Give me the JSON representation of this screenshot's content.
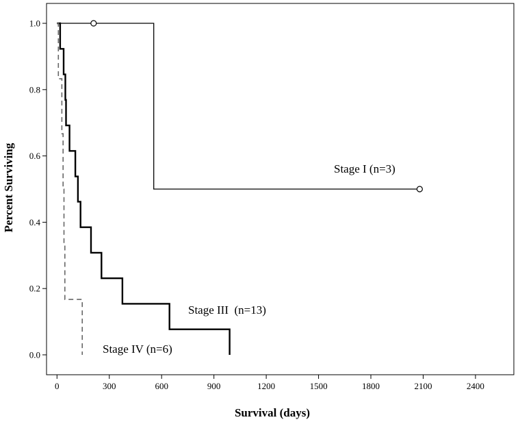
{
  "chart_data": {
    "type": "line",
    "subtype": "kaplan-meier step",
    "xlabel": "Survival (days)",
    "ylabel": "Percent Surviving",
    "xlim": [
      -60,
      2620
    ],
    "ylim": [
      -0.06,
      1.06
    ],
    "xticks": [
      0,
      300,
      600,
      900,
      1200,
      1500,
      1800,
      2100,
      2400
    ],
    "yticks": [
      0.0,
      0.2,
      0.4,
      0.6,
      0.8,
      1.0
    ],
    "ytick_labels": [
      "0.0",
      "0.2",
      "0.4",
      "0.6",
      "0.8",
      "1.0"
    ],
    "grid": false,
    "legend": "none",
    "series": [
      {
        "label": "Stage I (n=3)",
        "style": "solid-thin",
        "color": "#000000",
        "steps": [
          [
            0,
            1.0
          ],
          [
            555,
            1.0
          ],
          [
            555,
            0.5
          ],
          [
            2080,
            0.5
          ]
        ],
        "censored": [
          [
            210,
            1.0
          ],
          [
            2080,
            0.5
          ]
        ]
      },
      {
        "label": "Stage III  (n=13)",
        "style": "solid-thick",
        "color": "#000000",
        "steps": [
          [
            0,
            1.0
          ],
          [
            18,
            1.0
          ],
          [
            18,
            0.923
          ],
          [
            38,
            0.923
          ],
          [
            38,
            0.846
          ],
          [
            48,
            0.846
          ],
          [
            48,
            0.769
          ],
          [
            52,
            0.769
          ],
          [
            52,
            0.692
          ],
          [
            72,
            0.692
          ],
          [
            72,
            0.615
          ],
          [
            105,
            0.615
          ],
          [
            105,
            0.538
          ],
          [
            120,
            0.538
          ],
          [
            120,
            0.462
          ],
          [
            135,
            0.462
          ],
          [
            135,
            0.385
          ],
          [
            195,
            0.385
          ],
          [
            195,
            0.308
          ],
          [
            255,
            0.308
          ],
          [
            255,
            0.231
          ],
          [
            375,
            0.231
          ],
          [
            375,
            0.154
          ],
          [
            645,
            0.154
          ],
          [
            645,
            0.077
          ],
          [
            990,
            0.077
          ],
          [
            990,
            0.0
          ]
        ],
        "censored": []
      },
      {
        "label": "Stage IV (n=6)",
        "style": "dashed",
        "color": "#666666",
        "steps": [
          [
            0,
            1.0
          ],
          [
            8,
            1.0
          ],
          [
            8,
            0.833
          ],
          [
            28,
            0.833
          ],
          [
            28,
            0.667
          ],
          [
            35,
            0.667
          ],
          [
            35,
            0.5
          ],
          [
            40,
            0.5
          ],
          [
            40,
            0.333
          ],
          [
            45,
            0.333
          ],
          [
            45,
            0.167
          ],
          [
            145,
            0.167
          ],
          [
            145,
            0.0
          ]
        ],
        "censored": []
      }
    ]
  }
}
